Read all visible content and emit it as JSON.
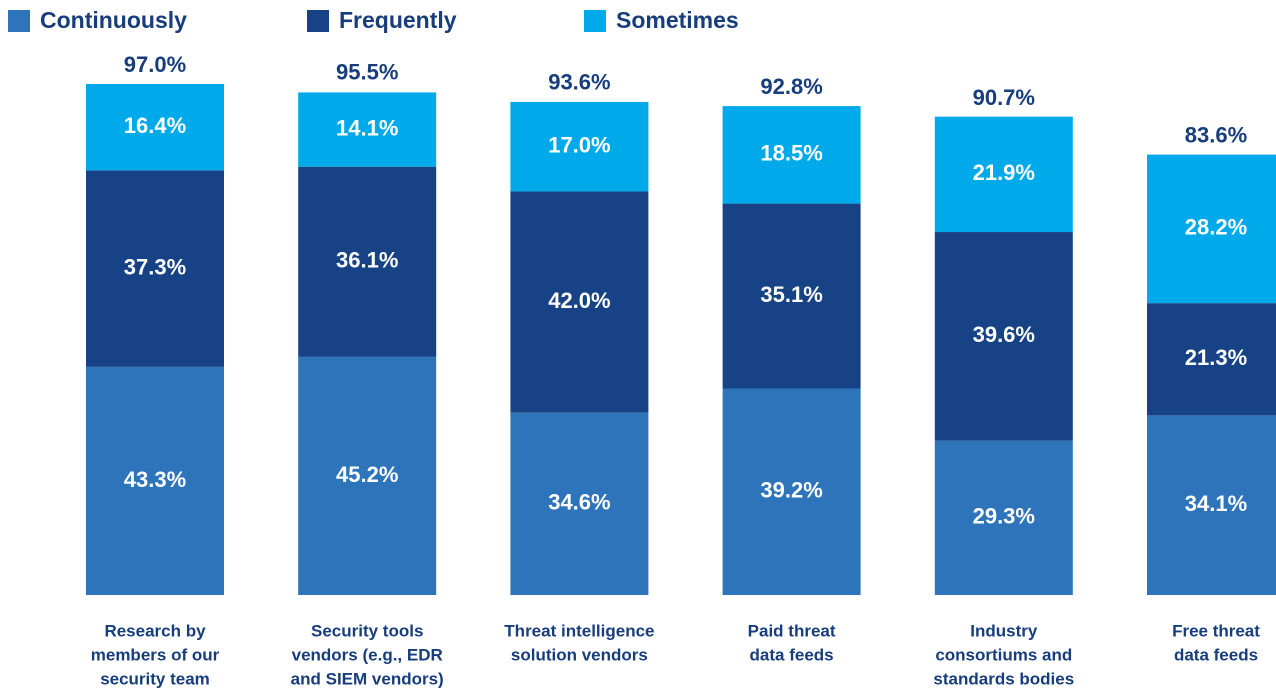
{
  "chart_data": {
    "type": "stacked_bar",
    "categories": [
      [
        "Research by",
        "members of our",
        "security team"
      ],
      [
        "Security tools",
        "vendors (e.g., EDR",
        "and SIEM vendors)"
      ],
      [
        "Threat intelligence",
        "solution vendors"
      ],
      [
        "Paid threat",
        "data feeds"
      ],
      [
        "Industry",
        "consortiums and",
        "standards bodies"
      ],
      [
        "Free threat",
        "data feeds"
      ]
    ],
    "series": [
      {
        "name": "Continuously",
        "color": "#2e74bb",
        "values": [
          43.3,
          45.2,
          34.6,
          39.2,
          29.3,
          34.1
        ],
        "value_labels": [
          "43.3%",
          "45.2%",
          "34.6%",
          "39.2%",
          "29.3%",
          "34.1%"
        ]
      },
      {
        "name": "Frequently",
        "color": "#174386",
        "values": [
          37.3,
          36.1,
          42.0,
          35.1,
          39.6,
          21.3
        ],
        "value_labels": [
          "37.3%",
          "36.1%",
          "42.0%",
          "35.1%",
          "39.6%",
          "21.3%"
        ]
      },
      {
        "name": "Sometimes",
        "color": "#00aaea",
        "values": [
          16.4,
          14.1,
          17.0,
          18.5,
          21.9,
          28.2
        ],
        "value_labels": [
          "16.4%",
          "14.1%",
          "17.0%",
          "18.5%",
          "21.9%",
          "28.2%"
        ]
      }
    ],
    "totals": [
      97.0,
      95.5,
      93.6,
      92.8,
      90.7,
      83.6
    ],
    "total_labels": [
      "97.0%",
      "95.5%",
      "93.6%",
      "92.8%",
      "90.7%",
      "83.6%"
    ],
    "legend": "top-left"
  }
}
